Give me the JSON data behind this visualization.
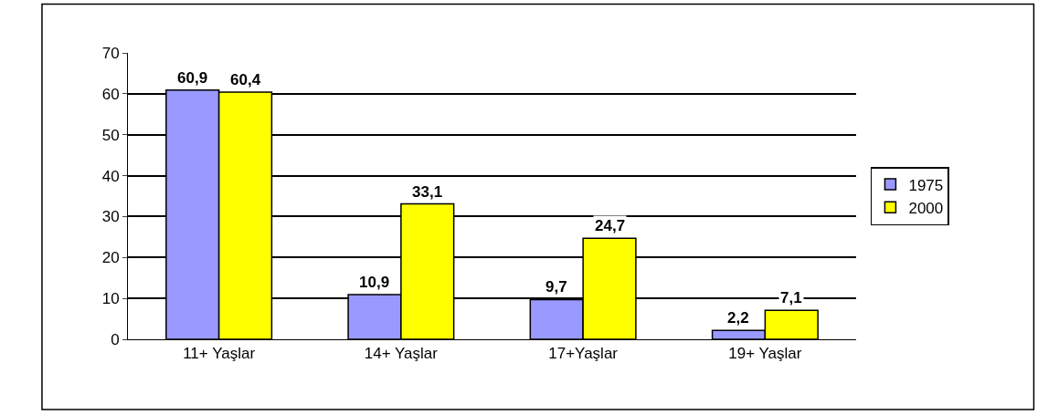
{
  "chart_data": {
    "type": "bar",
    "categories": [
      "11+ Yaşlar",
      "14+ Yaşlar",
      "17+Yaşlar",
      "19+ Yaşlar"
    ],
    "series": [
      {
        "name": "1975",
        "color": "#9999ff",
        "values": [
          60.9,
          10.9,
          9.7,
          2.2
        ],
        "value_labels": [
          "60,9",
          "10,9",
          "9,7",
          "2,2"
        ]
      },
      {
        "name": "2000",
        "color": "#ffff00",
        "values": [
          60.4,
          33.1,
          24.7,
          7.1
        ],
        "value_labels": [
          "60,4",
          "33,1",
          "24,7",
          "7,1"
        ]
      }
    ],
    "ylim": [
      0,
      70
    ],
    "yticks": [
      0,
      10,
      20,
      30,
      40,
      50,
      60,
      70
    ],
    "grid": "y",
    "legend": "right"
  }
}
